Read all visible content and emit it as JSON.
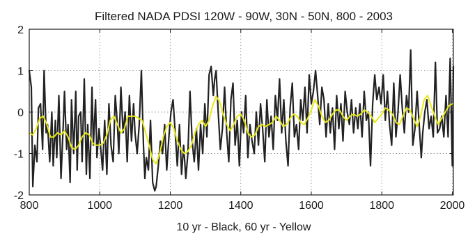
{
  "chart_data": {
    "type": "line",
    "title": "Filtered NADA PDSI 120W - 90W, 30N - 50N, 800 - 2003",
    "xlabel": "10 yr - Black, 60 yr - Yellow",
    "ylabel": "",
    "xlim": [
      800,
      2003
    ],
    "ylim": [
      -2,
      2
    ],
    "xticks": [
      800,
      1000,
      1200,
      1400,
      1600,
      1800,
      2000
    ],
    "yticks": [
      -2,
      -1,
      0,
      1,
      2
    ],
    "grid": true,
    "legend": "none",
    "colors": {
      "10yr": "#222222",
      "60yr": "#e8e817",
      "grid": "#9a9a9a"
    },
    "series": [
      {
        "key": "10yr",
        "x": [
          800,
          806,
          810,
          816,
          822,
          826,
          832,
          838,
          842,
          848,
          852,
          858,
          864,
          868,
          874,
          878,
          884,
          890,
          896,
          900,
          906,
          910,
          916,
          920,
          926,
          932,
          936,
          940,
          946,
          950,
          956,
          962,
          966,
          972,
          978,
          982,
          988,
          992,
          998,
          1004,
          1008,
          1014,
          1020,
          1026,
          1032,
          1038,
          1044,
          1050,
          1054,
          1060,
          1066,
          1072,
          1078,
          1084,
          1090,
          1096,
          1100,
          1106,
          1112,
          1118,
          1124,
          1128,
          1132,
          1138,
          1144,
          1150,
          1156,
          1160,
          1166,
          1172,
          1178,
          1184,
          1190,
          1196,
          1202,
          1208,
          1214,
          1220,
          1226,
          1232,
          1238,
          1244,
          1250,
          1256,
          1262,
          1268,
          1274,
          1280,
          1286,
          1292,
          1298,
          1304,
          1310,
          1316,
          1322,
          1326,
          1330,
          1336,
          1342,
          1348,
          1354,
          1360,
          1366,
          1372,
          1378,
          1384,
          1390,
          1396,
          1402,
          1408,
          1414,
          1420,
          1426,
          1432,
          1438,
          1444,
          1450,
          1456,
          1462,
          1468,
          1474,
          1480,
          1486,
          1492,
          1498,
          1504,
          1510,
          1516,
          1522,
          1528,
          1534,
          1540,
          1546,
          1552,
          1558,
          1564,
          1570,
          1576,
          1582,
          1588,
          1594,
          1600,
          1606,
          1612,
          1618,
          1624,
          1630,
          1636,
          1642,
          1648,
          1654,
          1660,
          1666,
          1672,
          1678,
          1684,
          1690,
          1696,
          1702,
          1708,
          1714,
          1720,
          1726,
          1732,
          1738,
          1744,
          1750,
          1756,
          1762,
          1768,
          1774,
          1780,
          1786,
          1792,
          1798,
          1804,
          1810,
          1816,
          1822,
          1828,
          1834,
          1840,
          1846,
          1852,
          1858,
          1864,
          1870,
          1876,
          1882,
          1888,
          1894,
          1900,
          1906,
          1912,
          1916,
          1922,
          1928,
          1934,
          1940,
          1946,
          1952,
          1958,
          1964,
          1970,
          1976,
          1982,
          1988,
          1994,
          2000,
          2003
        ],
        "values": [
          1.0,
          0.6,
          -1.8,
          -0.8,
          -1.2,
          0.1,
          0.2,
          -0.9,
          1.0,
          -0.5,
          -0.3,
          -1.2,
          0.0,
          -1.3,
          -0.2,
          -1.1,
          0.4,
          -1.6,
          -0.4,
          0.5,
          -0.9,
          -0.3,
          -1.7,
          0.3,
          -1.0,
          0.5,
          -1.4,
          -0.1,
          0.0,
          -1.2,
          0.8,
          -1.5,
          -0.3,
          -1.6,
          0.6,
          -0.8,
          0.3,
          -1.1,
          -0.4,
          -1.0,
          -1.4,
          -0.2,
          -1.5,
          0.2,
          -0.8,
          -1.2,
          0.4,
          -0.3,
          -1.0,
          0.6,
          -0.5,
          0.0,
          -1.2,
          0.4,
          -0.7,
          0.2,
          -0.5,
          -1.0,
          -0.3,
          1.0,
          -0.8,
          -1.6,
          -1.1,
          -1.4,
          -0.2,
          -1.7,
          -1.9,
          -1.8,
          -1.3,
          -0.7,
          -1.0,
          -0.3,
          -1.4,
          -0.6,
          0.0,
          0.3,
          -0.5,
          -1.3,
          -0.3,
          -1.5,
          -0.8,
          -1.6,
          -1.0,
          0.5,
          -0.7,
          -1.2,
          -0.4,
          -1.4,
          -0.3,
          -1.0,
          0.2,
          -0.6,
          0.9,
          1.1,
          0.4,
          0.8,
          1.0,
          0.0,
          -0.9,
          -0.4,
          0.6,
          -0.5,
          -1.2,
          0.3,
          0.7,
          -0.8,
          -0.2,
          -1.3,
          0.0,
          -0.5,
          0.4,
          -1.1,
          -0.3,
          -0.7,
          -1.0,
          0.0,
          -0.8,
          0.2,
          -0.4,
          -1.2,
          0.3,
          -0.6,
          -0.1,
          -0.9,
          0.4,
          -0.2,
          0.8,
          -0.5,
          0.3,
          -0.7,
          -1.3,
          0.1,
          0.7,
          -0.6,
          -0.3,
          -0.9,
          0.3,
          -0.2,
          0.6,
          -0.5,
          0.9,
          0.2,
          0.5,
          1.0,
          0.4,
          -0.3,
          0.6,
          0.3,
          -0.6,
          0.2,
          -0.5,
          0.1,
          -0.9,
          0.4,
          -0.4,
          0.2,
          -0.7,
          0.5,
          0.0,
          -0.3,
          0.3,
          -0.5,
          0.1,
          -0.4,
          0.2,
          -0.6,
          0.5,
          -0.2,
          0.0,
          -1.3,
          0.2,
          0.9,
          0.3,
          0.6,
          0.2,
          0.9,
          -0.2,
          0.5,
          -0.3,
          -0.8,
          0.7,
          -0.6,
          0.0,
          0.9,
          0.1,
          -0.5,
          0.4,
          0.0,
          1.5,
          -0.8,
          -0.4,
          0.5,
          -0.3,
          -1.1,
          -0.5,
          0.0,
          0.3,
          -0.4,
          -0.1,
          -0.6,
          1.2,
          -0.5,
          -0.4,
          -0.1,
          -0.6,
          0.4,
          -0.6,
          1.3,
          -1.3,
          1.1
        ]
      },
      {
        "key": "60yr",
        "x": [
          800,
          810,
          820,
          830,
          840,
          850,
          860,
          870,
          880,
          890,
          900,
          910,
          920,
          930,
          940,
          950,
          960,
          970,
          980,
          990,
          1000,
          1010,
          1020,
          1030,
          1040,
          1050,
          1060,
          1070,
          1080,
          1090,
          1100,
          1110,
          1120,
          1130,
          1140,
          1150,
          1160,
          1170,
          1180,
          1190,
          1200,
          1210,
          1220,
          1230,
          1240,
          1250,
          1260,
          1270,
          1280,
          1290,
          1300,
          1310,
          1320,
          1330,
          1340,
          1350,
          1360,
          1370,
          1380,
          1390,
          1400,
          1410,
          1420,
          1430,
          1440,
          1450,
          1460,
          1470,
          1480,
          1490,
          1500,
          1510,
          1520,
          1530,
          1540,
          1550,
          1560,
          1570,
          1580,
          1590,
          1600,
          1610,
          1620,
          1630,
          1640,
          1650,
          1660,
          1670,
          1680,
          1690,
          1700,
          1710,
          1720,
          1730,
          1740,
          1750,
          1760,
          1770,
          1780,
          1790,
          1800,
          1810,
          1820,
          1830,
          1840,
          1850,
          1860,
          1870,
          1880,
          1890,
          1900,
          1910,
          1920,
          1930,
          1940,
          1950,
          1960,
          1970,
          1980,
          1990,
          2000,
          2003
        ],
        "values": [
          -0.5,
          -0.55,
          -0.4,
          -0.15,
          -0.1,
          -0.3,
          -0.6,
          -0.6,
          -0.5,
          -0.55,
          -0.45,
          -0.6,
          -0.85,
          -0.9,
          -0.8,
          -0.6,
          -0.5,
          -0.55,
          -0.75,
          -0.8,
          -0.8,
          -0.75,
          -0.55,
          -0.2,
          -0.1,
          -0.3,
          -0.5,
          -0.4,
          -0.1,
          -0.1,
          -0.1,
          -0.15,
          -0.2,
          -0.5,
          -0.8,
          -1.15,
          -1.25,
          -1.0,
          -0.6,
          -0.35,
          -0.25,
          -0.4,
          -0.7,
          -0.9,
          -1.0,
          -0.95,
          -0.8,
          -0.5,
          -0.3,
          -0.2,
          -0.35,
          -0.2,
          0.15,
          0.38,
          0.25,
          -0.05,
          -0.3,
          -0.45,
          -0.3,
          -0.1,
          -0.05,
          -0.2,
          -0.5,
          -0.6,
          -0.55,
          -0.35,
          -0.3,
          -0.35,
          -0.3,
          -0.25,
          -0.1,
          -0.2,
          -0.35,
          -0.3,
          -0.15,
          -0.05,
          -0.1,
          -0.25,
          -0.3,
          -0.15,
          0.05,
          0.3,
          0.15,
          -0.1,
          -0.25,
          -0.2,
          -0.05,
          0.05,
          0.05,
          -0.1,
          -0.2,
          -0.1,
          -0.05,
          -0.1,
          -0.05,
          0.05,
          0.0,
          -0.1,
          -0.25,
          -0.15,
          -0.05,
          0.1,
          0.05,
          -0.05,
          -0.25,
          -0.3,
          -0.1,
          0.1,
          0.05,
          -0.15,
          -0.35,
          -0.1,
          0.3,
          0.4,
          0.15,
          -0.1,
          -0.3,
          -0.15,
          0.0,
          0.15,
          0.2,
          0.2
        ]
      }
    ]
  }
}
